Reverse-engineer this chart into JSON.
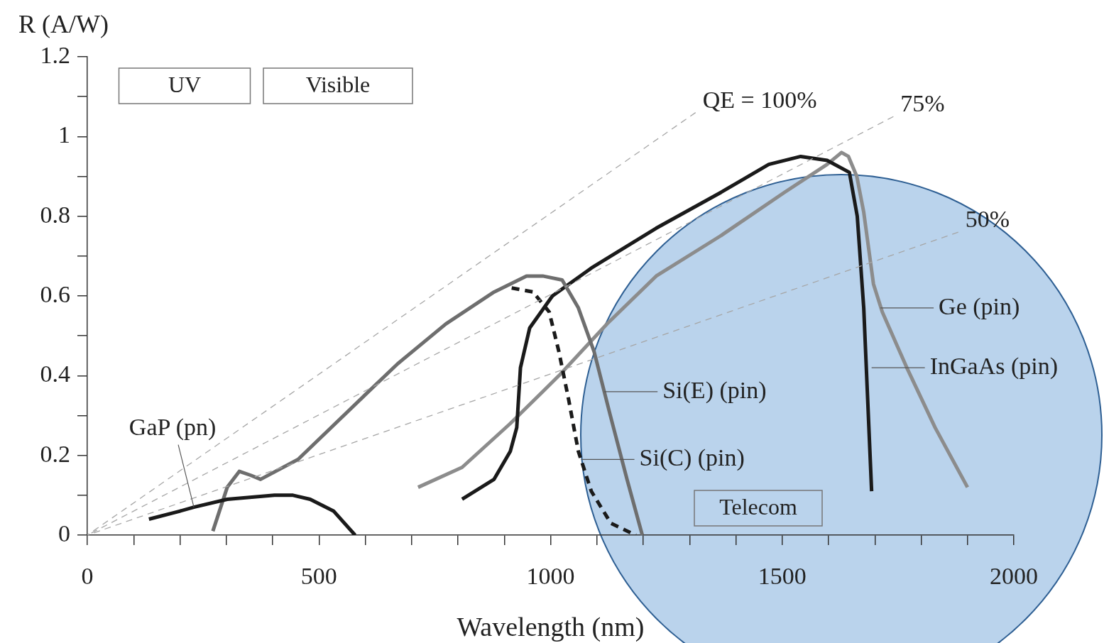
{
  "chart_data": {
    "type": "line",
    "xlabel": "Wavelength (nm)",
    "ylabel": "R (A/W)",
    "xlim": [
      0,
      2000
    ],
    "ylim": [
      0,
      1.2
    ],
    "xticks": [
      0,
      {
        "value": 100,
        "label": null
      },
      {
        "value": 200,
        "label": null
      },
      {
        "value": 300,
        "label": null
      },
      {
        "value": 400,
        "label": null
      },
      500,
      {
        "value": 600,
        "label": null
      },
      {
        "value": 700,
        "label": null
      },
      {
        "value": 800,
        "label": null
      },
      {
        "value": 900,
        "label": null
      },
      1000,
      {
        "value": 1100,
        "label": null
      },
      {
        "value": 1200,
        "label": null
      },
      {
        "value": 1300,
        "label": null
      },
      {
        "value": 1400,
        "label": null
      },
      1500,
      {
        "value": 1600,
        "label": null
      },
      {
        "value": 1700,
        "label": null
      },
      {
        "value": 1800,
        "label": null
      },
      {
        "value": 1900,
        "label": null
      },
      2000
    ],
    "yticks": [
      0,
      {
        "value": 0.1,
        "label": null
      },
      0.2,
      {
        "value": 0.3,
        "label": null
      },
      0.4,
      {
        "value": 0.5,
        "label": null
      },
      0.6,
      {
        "value": 0.7,
        "label": null
      },
      0.8,
      {
        "value": 0.9,
        "label": null
      },
      1,
      {
        "value": 1.1,
        "label": null
      },
      1.2
    ],
    "grid": false,
    "legend": false,
    "marker": "none",
    "series": [
      {
        "name": "QE = 100%",
        "color": "#a6a6a6",
        "line_style": "dashed",
        "x": [
          0,
          1313
        ],
        "values": [
          0,
          1.06
        ]
      },
      {
        "name": "75%",
        "color": "#a6a6a6",
        "line_style": "dashed",
        "x": [
          0,
          1740
        ],
        "values": [
          0,
          1.05
        ]
      },
      {
        "name": "50%",
        "color": "#a6a6a6",
        "line_style": "dashed",
        "x": [
          0,
          1880
        ],
        "values": [
          0,
          0.76
        ]
      },
      {
        "color": "#1a1a1a",
        "x": [
          133,
          199,
          230,
          302,
          404,
          444,
          481,
          532,
          578
        ],
        "values": [
          0.04,
          0.06,
          0.07,
          0.09,
          0.1,
          0.1,
          0.09,
          0.06,
          0
        ]
      },
      {
        "color": "#6e6e6e",
        "x": [
          271,
          302,
          328,
          353,
          374,
          455,
          598,
          670,
          774,
          878,
          948,
          983,
          1025,
          1060,
          1094,
          1129,
          1165,
          1198
        ],
        "values": [
          0.01,
          0.12,
          0.16,
          0.15,
          0.14,
          0.19,
          0.35,
          0.43,
          0.53,
          0.61,
          0.65,
          0.65,
          0.64,
          0.57,
          0.46,
          0.3,
          0.14,
          0
        ]
      },
      {
        "color": "#1a1a1a",
        "line_style": "dashed",
        "x": [
          916,
          962,
          997,
          1018,
          1039,
          1060,
          1088,
          1130,
          1184
        ],
        "values": [
          0.62,
          0.61,
          0.56,
          0.46,
          0.34,
          0.21,
          0.11,
          0.03,
          0
        ]
      },
      {
        "color": "#1a1a1a",
        "x": [
          809,
          878,
          913,
          927,
          935,
          955,
          1004,
          1088,
          1228,
          1368,
          1471,
          1540,
          1597,
          1645,
          1662,
          1676,
          1693
        ],
        "values": [
          0.09,
          0.14,
          0.21,
          0.27,
          0.42,
          0.52,
          0.6,
          0.67,
          0.77,
          0.86,
          0.93,
          0.95,
          0.94,
          0.91,
          0.8,
          0.57,
          0.11
        ]
      },
      {
        "color": "#8c8c8c",
        "x": [
          714,
          809,
          913,
          1018,
          1122,
          1228,
          1366,
          1505,
          1597,
          1628,
          1643,
          1661,
          1676,
          1697,
          1716,
          1769,
          1830,
          1900
        ],
        "values": [
          0.12,
          0.17,
          0.28,
          0.4,
          0.53,
          0.65,
          0.75,
          0.86,
          0.93,
          0.96,
          0.95,
          0.9,
          0.81,
          0.63,
          0.56,
          0.42,
          0.27,
          0.12
        ]
      }
    ],
    "annotations": [
      "UV",
      "Visible",
      "Telecom",
      {
        "text": "GaP (pn)",
        "x": 230,
        "y": 0.07
      },
      {
        "text": "Si(E) (pin)",
        "x": 1116,
        "y": 0.36
      },
      {
        "text": "Si(C) (pin)",
        "x": 1066,
        "y": 0.19
      },
      {
        "text": "Ge (pin)",
        "x": 1712,
        "y": 0.57
      },
      {
        "text": "InGaAs (pin)",
        "x": 1693,
        "y": 0.42
      }
    ]
  }
}
